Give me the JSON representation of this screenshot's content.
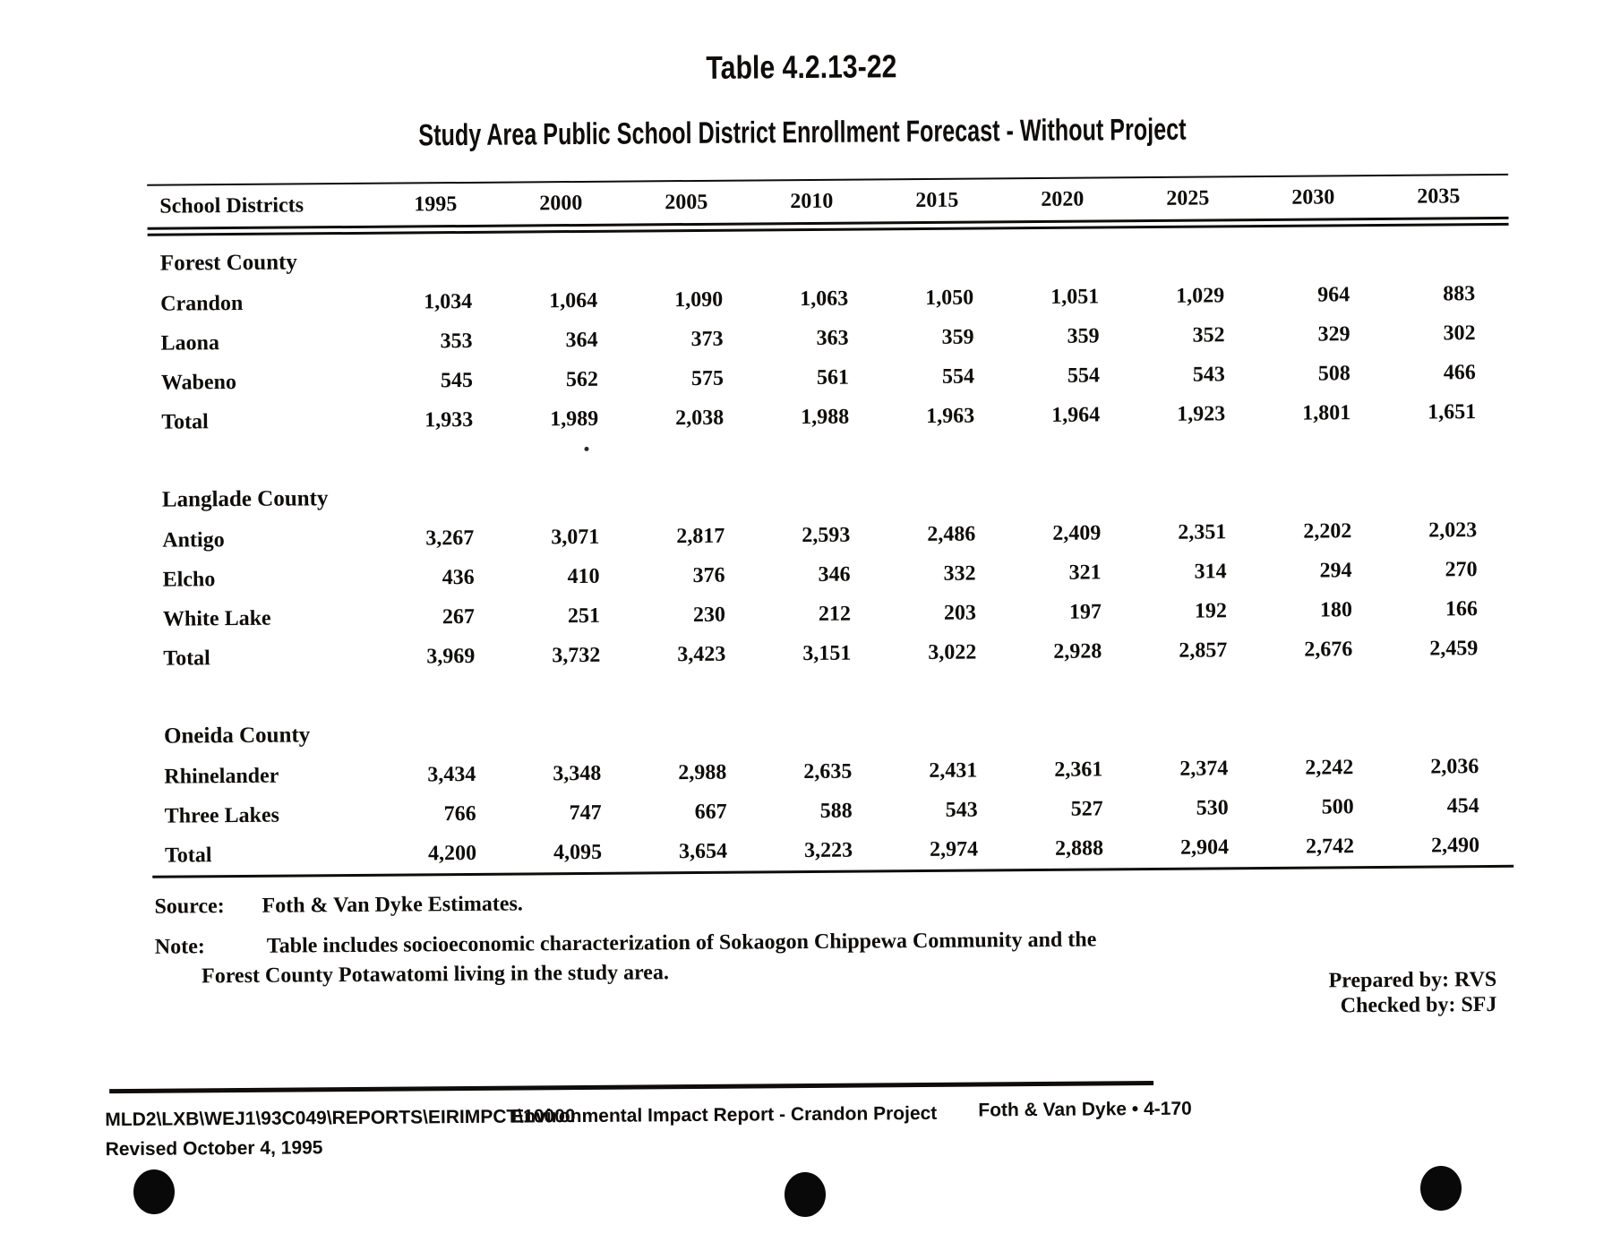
{
  "colors": {
    "paper": "#ffffff",
    "ink": "#0e0d0b"
  },
  "header": {
    "table_label": "Table 4.2.13-22",
    "title": "Study Area Public School District Enrollment Forecast - Without Project"
  },
  "table": {
    "columns": [
      "School Districts",
      "1995",
      "2000",
      "2005",
      "2010",
      "2015",
      "2020",
      "2025",
      "2030",
      "2035"
    ],
    "groups": [
      {
        "name": "Forest County",
        "rows": [
          {
            "label": "Crandon",
            "values": [
              "1,034",
              "1,064",
              "1,090",
              "1,063",
              "1,050",
              "1,051",
              "1,029",
              "964",
              "883"
            ]
          },
          {
            "label": "Laona",
            "values": [
              "353",
              "364",
              "373",
              "363",
              "359",
              "359",
              "352",
              "329",
              "302"
            ]
          },
          {
            "label": "Wabeno",
            "values": [
              "545",
              "562",
              "575",
              "561",
              "554",
              "554",
              "543",
              "508",
              "466"
            ]
          },
          {
            "label": "Total",
            "values": [
              "1,933",
              "1,989",
              "2,038",
              "1,988",
              "1,963",
              "1,964",
              "1,923",
              "1,801",
              "1,651"
            ]
          }
        ]
      },
      {
        "name": "Langlade County",
        "rows": [
          {
            "label": "Antigo",
            "values": [
              "3,267",
              "3,071",
              "2,817",
              "2,593",
              "2,486",
              "2,409",
              "2,351",
              "2,202",
              "2,023"
            ]
          },
          {
            "label": "Elcho",
            "values": [
              "436",
              "410",
              "376",
              "346",
              "332",
              "321",
              "314",
              "294",
              "270"
            ]
          },
          {
            "label": "White Lake",
            "values": [
              "267",
              "251",
              "230",
              "212",
              "203",
              "197",
              "192",
              "180",
              "166"
            ]
          },
          {
            "label": "Total",
            "values": [
              "3,969",
              "3,732",
              "3,423",
              "3,151",
              "3,022",
              "2,928",
              "2,857",
              "2,676",
              "2,459"
            ]
          }
        ]
      },
      {
        "name": "Oneida County",
        "rows": [
          {
            "label": "Rhinelander",
            "values": [
              "3,434",
              "3,348",
              "2,988",
              "2,635",
              "2,431",
              "2,361",
              "2,374",
              "2,242",
              "2,036"
            ]
          },
          {
            "label": "Three Lakes",
            "values": [
              "766",
              "747",
              "667",
              "588",
              "543",
              "527",
              "530",
              "500",
              "454"
            ]
          },
          {
            "label": "Total",
            "values": [
              "4,200",
              "4,095",
              "3,654",
              "3,223",
              "2,974",
              "2,888",
              "2,904",
              "2,742",
              "2,490"
            ]
          }
        ]
      }
    ]
  },
  "notes": {
    "source_label": "Source:",
    "source_text": "Foth & Van Dyke Estimates.",
    "note_label": "Note:",
    "note_line1": "Table includes socioeconomic characterization of Sokaogon Chippewa Community and the",
    "note_line2": "Forest County Potawatomi living in the study area.",
    "prepared_by": "Prepared by: RVS",
    "checked_by": "Checked by: SFJ"
  },
  "footer": {
    "file_path": "MLD2\\LXB\\WEJ1\\93C049\\REPORTS\\EIRIMPCT\\10000",
    "report_title": "Environmental Impact Report - Crandon Project",
    "page_ref": "Foth & Van Dyke • 4-170",
    "revised": "Revised October 4, 1995"
  }
}
